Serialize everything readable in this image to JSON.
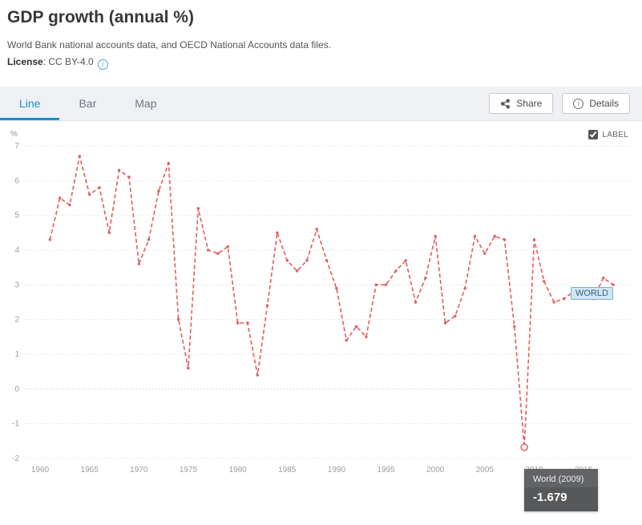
{
  "header": {
    "title": "GDP growth (annual %)",
    "subtitle": "World Bank national accounts data, and OECD National Accounts data files.",
    "license_label": "License",
    "license_value": ": CC BY-4.0"
  },
  "tabs": [
    {
      "label": "Line",
      "active": true
    },
    {
      "label": "Bar",
      "active": false
    },
    {
      "label": "Map",
      "active": false
    }
  ],
  "buttons": {
    "share": "Share",
    "details": "Details"
  },
  "chart_controls": {
    "label_text": "LABEL",
    "checked": true
  },
  "series_label": "WORLD",
  "tooltip": {
    "title": "World (2009)",
    "value": "-1.679"
  },
  "colors": {
    "accent_blue": "#1693cf",
    "line_red": "#e25d5e",
    "tooltip_bg": "#57585a",
    "series_tag_bg": "#cfe7f4"
  },
  "chart_data": {
    "type": "line",
    "title": "GDP growth (annual %)",
    "xlabel": "",
    "ylabel": "%",
    "ylim": [
      -2,
      7
    ],
    "grid": "horizontal-dotted",
    "legend_position": "inline-right",
    "line_color": "#e25d5e",
    "xticks": [
      1960,
      1965,
      1970,
      1975,
      1980,
      1985,
      1990,
      1995,
      2000,
      2005,
      2010,
      2015
    ],
    "yticks": [
      -2,
      -1,
      0,
      1,
      2,
      3,
      4,
      5,
      6,
      7
    ],
    "x": [
      1961,
      1962,
      1963,
      1964,
      1965,
      1966,
      1967,
      1968,
      1969,
      1970,
      1971,
      1972,
      1973,
      1974,
      1975,
      1976,
      1977,
      1978,
      1979,
      1980,
      1981,
      1982,
      1983,
      1984,
      1985,
      1986,
      1987,
      1988,
      1989,
      1990,
      1991,
      1992,
      1993,
      1994,
      1995,
      1996,
      1997,
      1998,
      1999,
      2000,
      2001,
      2002,
      2003,
      2004,
      2005,
      2006,
      2007,
      2008,
      2009,
      2010,
      2011,
      2012,
      2013,
      2014,
      2015,
      2016,
      2017,
      2018
    ],
    "series": [
      {
        "name": "World",
        "values": [
          4.3,
          5.5,
          5.3,
          6.7,
          5.6,
          5.8,
          4.5,
          6.3,
          6.1,
          3.6,
          4.3,
          5.7,
          6.5,
          2.0,
          0.6,
          5.2,
          4.0,
          3.9,
          4.1,
          1.9,
          1.9,
          0.4,
          2.4,
          4.5,
          3.7,
          3.4,
          3.7,
          4.6,
          3.7,
          2.9,
          1.4,
          1.8,
          1.5,
          3.0,
          3.0,
          3.4,
          3.7,
          2.5,
          3.2,
          4.4,
          1.9,
          2.1,
          2.9,
          4.4,
          3.9,
          4.4,
          4.3,
          1.8,
          -1.679,
          4.3,
          3.1,
          2.5,
          2.6,
          2.8,
          2.9,
          2.6,
          3.2,
          3.0
        ]
      }
    ],
    "highlight": {
      "x": 2009,
      "y": -1.679
    }
  }
}
